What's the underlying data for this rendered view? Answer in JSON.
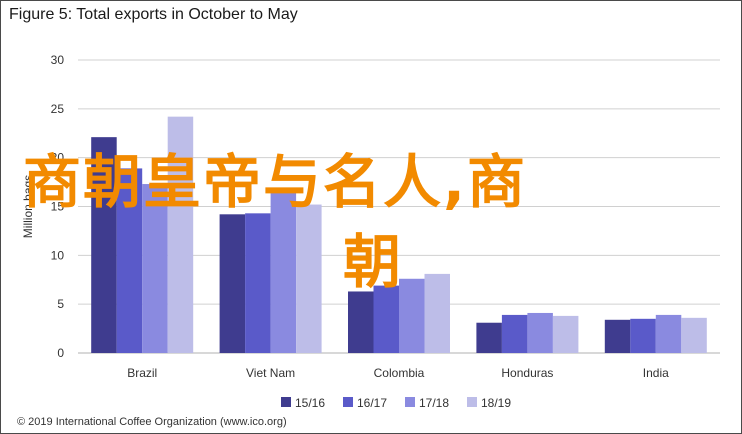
{
  "figure": {
    "title": "Figure 5: Total exports in October to May",
    "copyright": "© 2019 International Coffee Organization (www.ico.org)"
  },
  "overlay": {
    "line1": "商朝皇帝与名人,商",
    "line2": "朝",
    "color": "#f28a00"
  },
  "chart_data": {
    "type": "bar",
    "categories": [
      "Brazil",
      "Viet Nam",
      "Colombia",
      "Honduras",
      "India"
    ],
    "series": [
      {
        "name": "15/16",
        "values": [
          22.1,
          14.2,
          6.3,
          3.1,
          3.4
        ],
        "color": "#3f3c8f"
      },
      {
        "name": "16/17",
        "values": [
          18.9,
          14.3,
          6.9,
          3.9,
          3.5
        ],
        "color": "#5a5ac9"
      },
      {
        "name": "17/18",
        "values": [
          17.3,
          16.8,
          7.6,
          4.1,
          3.9
        ],
        "color": "#8a8ae0"
      },
      {
        "name": "18/19",
        "values": [
          24.2,
          15.2,
          8.1,
          3.8,
          3.6
        ],
        "color": "#bdbde8"
      }
    ],
    "ylabel": "Million bags",
    "xlabel": "",
    "ylim": [
      0,
      30
    ],
    "yticks": [
      0,
      5,
      10,
      15,
      20,
      25,
      30
    ],
    "grid": true,
    "legend_position": "bottom"
  }
}
